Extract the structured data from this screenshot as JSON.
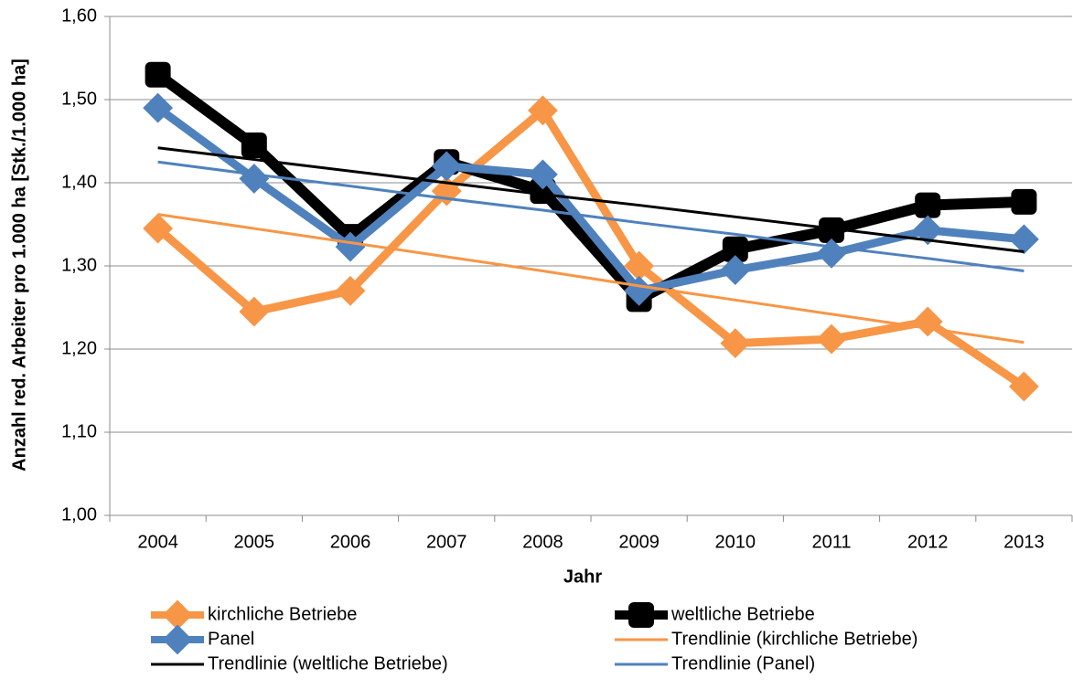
{
  "chart_data": {
    "type": "line",
    "x_label": "Jahr",
    "y_label": "Anzahl red. Arbeiter pro 1.000 ha [Stk./1.000 ha]",
    "categories": [
      "2004",
      "2005",
      "2006",
      "2007",
      "2008",
      "2009",
      "2010",
      "2011",
      "2012",
      "2013"
    ],
    "series": [
      {
        "name": "kirchliche Betriebe",
        "color": "#f79646",
        "marker": "diamond",
        "values": [
          1.345,
          1.245,
          1.27,
          1.39,
          1.487,
          1.3,
          1.207,
          1.212,
          1.233,
          1.155
        ]
      },
      {
        "name": "weltliche Betriebe",
        "color": "#000000",
        "marker": "square",
        "values": [
          1.53,
          1.445,
          1.335,
          1.425,
          1.39,
          1.26,
          1.32,
          1.343,
          1.373,
          1.377
        ]
      },
      {
        "name": "Panel",
        "color": "#4f81bd",
        "marker": "diamond",
        "values": [
          1.49,
          1.405,
          1.323,
          1.42,
          1.41,
          1.27,
          1.295,
          1.315,
          1.343,
          1.332
        ]
      },
      {
        "name": "Trendlinie (kirchliche Betriebe)",
        "color": "#f79646",
        "values": [
          1.362,
          1.345,
          1.328,
          1.311,
          1.294,
          1.276,
          1.259,
          1.242,
          1.225,
          1.208
        ]
      },
      {
        "name": "Trendlinie (weltliche Betriebe)",
        "color": "#000000",
        "values": [
          1.442,
          1.428,
          1.414,
          1.4,
          1.386,
          1.373,
          1.359,
          1.345,
          1.331,
          1.317
        ]
      },
      {
        "name": "Trendlinie (Panel)",
        "color": "#4f81bd",
        "values": [
          1.425,
          1.41,
          1.396,
          1.381,
          1.367,
          1.352,
          1.338,
          1.323,
          1.309,
          1.294
        ]
      }
    ],
    "ylim": [
      1.0,
      1.6
    ],
    "yticks": [
      {
        "value": 1.0,
        "label": "1,00"
      },
      {
        "value": 1.1,
        "label": "1,10"
      },
      {
        "value": 1.2,
        "label": "1,20"
      },
      {
        "value": 1.3,
        "label": "1,30"
      },
      {
        "value": 1.4,
        "label": "1,40"
      },
      {
        "value": 1.5,
        "label": "1,50"
      },
      {
        "value": 1.6,
        "label": "1,60"
      }
    ],
    "grid": true,
    "legend": "bottom"
  }
}
